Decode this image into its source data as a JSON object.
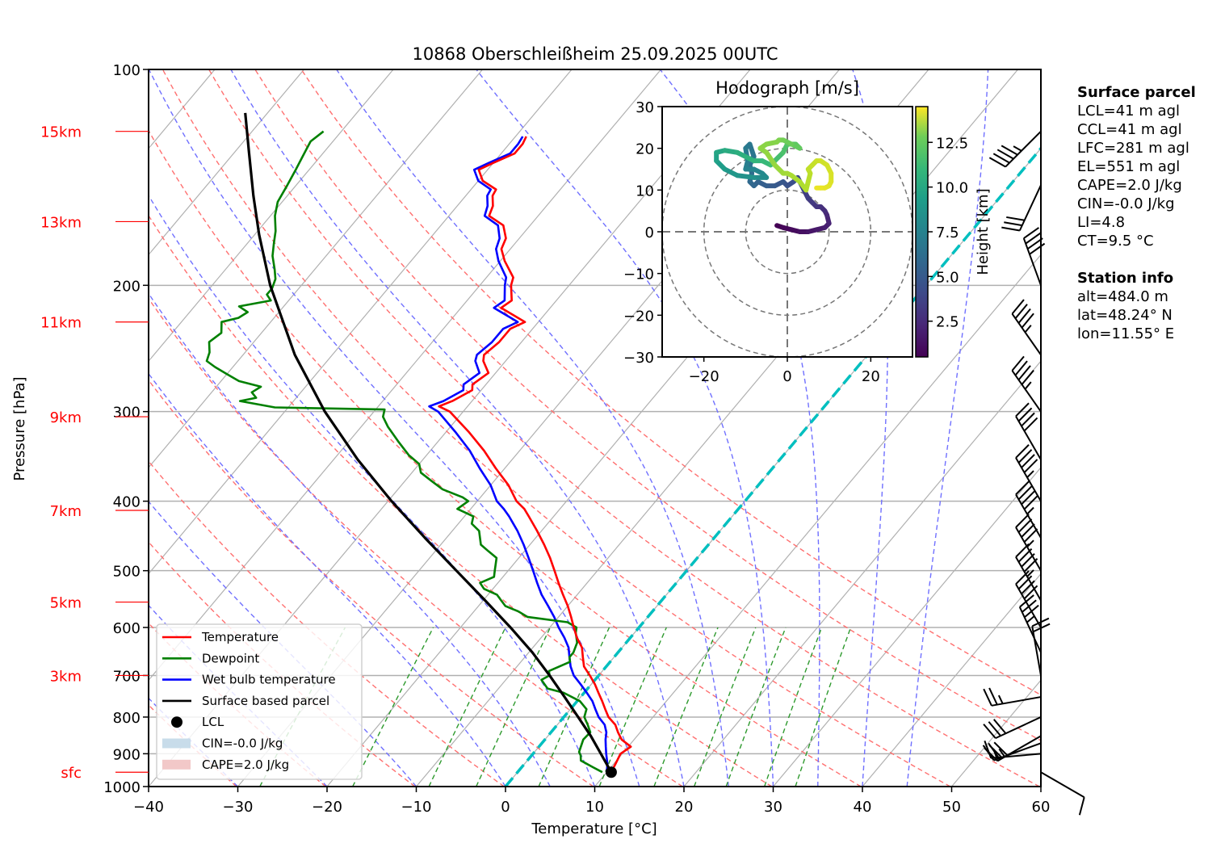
{
  "chart_data": {
    "type": "line",
    "subtype": "skew-t log-p",
    "title": "10868 Oberschleißheim 25.09.2025 00UTC",
    "xlabel": "Temperature [°C]",
    "ylabel": "Pressure [hPa]",
    "xlim": [
      -40,
      60
    ],
    "ylim": [
      1000,
      100
    ],
    "xticks": [
      -40,
      -30,
      -20,
      -10,
      0,
      10,
      20,
      30,
      40,
      50,
      60
    ],
    "yticks": [
      100,
      200,
      300,
      400,
      500,
      600,
      700,
      800,
      900,
      1000
    ],
    "grid": true,
    "height_markers": [
      {
        "label": "15km",
        "p": 122
      },
      {
        "label": "13km",
        "p": 163
      },
      {
        "label": "11km",
        "p": 225
      },
      {
        "label": "9km",
        "p": 305
      },
      {
        "label": "7km",
        "p": 412
      },
      {
        "label": "5km",
        "p": 553
      },
      {
        "label": "3km",
        "p": 700
      },
      {
        "label": "sfc",
        "p": 955
      }
    ],
    "series": [
      {
        "name": "Temperature",
        "color": "#ff0000",
        "p": [
          955,
          930,
          900,
          880,
          860,
          840,
          820,
          800,
          780,
          760,
          740,
          720,
          700,
          680,
          660,
          640,
          620,
          600,
          580,
          560,
          540,
          520,
          500,
          480,
          460,
          440,
          420,
          410,
          400,
          380,
          360,
          340,
          320,
          300,
          295,
          290,
          280,
          275,
          265,
          255,
          250,
          240,
          230,
          225,
          215,
          210,
          200,
          195,
          185,
          178,
          172,
          165,
          160,
          155,
          150,
          147,
          143,
          138,
          135,
          131,
          127,
          124
        ],
        "t": [
          10.5,
          10.2,
          9.8,
          10.3,
          8.6,
          7.5,
          6.5,
          5.0,
          3.9,
          2.8,
          1.6,
          0.4,
          -1.0,
          -2.5,
          -3.5,
          -4.5,
          -6.0,
          -7.3,
          -8.6,
          -10.0,
          -11.6,
          -13.2,
          -14.8,
          -16.5,
          -18.4,
          -20.5,
          -22.8,
          -24.0,
          -25.6,
          -28.0,
          -31.0,
          -34.0,
          -37.5,
          -41.5,
          -43.2,
          -42.2,
          -41.0,
          -41.5,
          -40.8,
          -42.5,
          -43.0,
          -42.5,
          -42.5,
          -41.5,
          -45.5,
          -45.0,
          -46.5,
          -47.0,
          -49.5,
          -51.0,
          -51.5,
          -53.0,
          -55.5,
          -56.0,
          -57.0,
          -57.2,
          -59.5,
          -61.0,
          -60.0,
          -58.5,
          -58.5,
          -58.8
        ]
      },
      {
        "name": "Dewpoint",
        "color": "#008000",
        "p": [
          955,
          940,
          920,
          905,
          895,
          880,
          860,
          840,
          820,
          800,
          780,
          760,
          740,
          730,
          710,
          700,
          690,
          670,
          660,
          650,
          630,
          610,
          600,
          590,
          580,
          570,
          560,
          550,
          540,
          530,
          520,
          510,
          500,
          480,
          470,
          460,
          440,
          430,
          420,
          410,
          400,
          395,
          385,
          375,
          365,
          355,
          345,
          330,
          315,
          305,
          298,
          296,
          290,
          287,
          282,
          277,
          272,
          266,
          260,
          255,
          248,
          240,
          233,
          225,
          222,
          218,
          214,
          210,
          206,
          202,
          196,
          190,
          182,
          175,
          168,
          160,
          153,
          145,
          138,
          132,
          126,
          122
        ],
        "t": [
          9.5,
          8.0,
          6.0,
          5.5,
          5.0,
          4.7,
          4.3,
          4.4,
          3.4,
          2.3,
          1.8,
          0.3,
          -2.3,
          -4.5,
          -6.0,
          -5.5,
          -6.0,
          -4.5,
          -5.0,
          -5.0,
          -5.5,
          -6.6,
          -7.0,
          -8.5,
          -13.5,
          -15.0,
          -17.0,
          -18.0,
          -19.0,
          -21.0,
          -22.0,
          -21.0,
          -21.5,
          -22.5,
          -24.0,
          -25.5,
          -27.0,
          -28.5,
          -29.0,
          -31.5,
          -31.0,
          -32.0,
          -35.0,
          -37.0,
          -39.0,
          -40.0,
          -42.0,
          -44.5,
          -47.0,
          -48.5,
          -49.0,
          -61.5,
          -66.0,
          -64.5,
          -65.5,
          -65.0,
          -68.0,
          -70.0,
          -72.0,
          -73.5,
          -74.0,
          -75.0,
          -74.5,
          -75.5,
          -74.0,
          -73.5,
          -75.0,
          -72.0,
          -73.0,
          -73.0,
          -73.5,
          -74.5,
          -76.0,
          -77.0,
          -78.0,
          -79.5,
          -80.5,
          -81.0,
          -81.5,
          -82.0,
          -82.5,
          -82.0
        ]
      },
      {
        "name": "Wet bulb temperature",
        "color": "#0000ff",
        "p": [
          955,
          930,
          900,
          880,
          860,
          840,
          820,
          800,
          780,
          760,
          740,
          720,
          700,
          680,
          660,
          640,
          620,
          600,
          580,
          560,
          540,
          520,
          500,
          480,
          460,
          440,
          420,
          410,
          400,
          380,
          360,
          340,
          320,
          300,
          295,
          290,
          280,
          275,
          265,
          255,
          250,
          240,
          230,
          225,
          215,
          210,
          200,
          195,
          185,
          178,
          172,
          165,
          160,
          155,
          150,
          147,
          143,
          138,
          135,
          131,
          127,
          124
        ],
        "t": [
          10.0,
          9.3,
          8.2,
          7.5,
          6.8,
          6.2,
          5.3,
          3.9,
          2.8,
          1.7,
          0.3,
          -1.2,
          -2.8,
          -4.0,
          -5.0,
          -6.0,
          -7.4,
          -9.0,
          -10.5,
          -12.2,
          -14.0,
          -15.6,
          -17.2,
          -18.9,
          -20.7,
          -22.7,
          -25.0,
          -26.3,
          -27.8,
          -30.0,
          -32.8,
          -35.6,
          -39.0,
          -42.8,
          -44.3,
          -43.2,
          -42.0,
          -42.5,
          -41.8,
          -43.4,
          -43.8,
          -43.3,
          -43.3,
          -42.3,
          -46.3,
          -45.8,
          -47.2,
          -47.8,
          -50.2,
          -51.6,
          -52.2,
          -53.6,
          -56.0,
          -56.6,
          -57.6,
          -57.8,
          -60.0,
          -61.5,
          -60.5,
          -59.0,
          -59.0,
          -59.2
        ]
      },
      {
        "name": "Surface based parcel",
        "color": "#000000",
        "p": [
          955,
          900,
          850,
          800,
          750,
          700,
          650,
          600,
          550,
          500,
          450,
          400,
          350,
          300,
          250,
          200,
          170,
          150,
          130,
          115
        ],
        "t": [
          10.5,
          7.6,
          4.8,
          1.6,
          -1.8,
          -5.5,
          -9.6,
          -14.4,
          -19.8,
          -25.8,
          -32.4,
          -39.6,
          -47.3,
          -55.5,
          -64.2,
          -73.5,
          -79.5,
          -83.8,
          -88.5,
          -92.5
        ]
      }
    ],
    "lcl": {
      "label": "LCL",
      "p": 955,
      "t": 10.5
    },
    "fills": [
      {
        "label": "CIN=-0.0 J/kg",
        "color": "#c8dcea"
      },
      {
        "label": "CAPE=2.0 J/kg",
        "color": "#f2c8c8"
      }
    ],
    "zero_isotherm": {
      "t": 0,
      "color": "#00bfbf"
    },
    "dry_adiabats_theta_K": [
      213,
      223,
      233,
      243,
      253,
      263,
      273,
      283,
      293,
      303,
      313,
      323,
      333,
      343,
      353
    ],
    "moist_adiabats_tw_C": [
      -30,
      -20,
      -10,
      0,
      5,
      10,
      15,
      20,
      25,
      30,
      35,
      40,
      45
    ],
    "mixing_ratios_gkg": [
      0.4,
      1,
      2,
      3,
      5,
      8,
      12,
      16,
      20,
      26,
      32
    ],
    "wind_barbs": [
      {
        "p": 122,
        "dir": 225,
        "spd_kt": 45
      },
      {
        "p": 145,
        "dir": 205,
        "spd_kt": 30
      },
      {
        "p": 200,
        "dir": 340,
        "spd_kt": 40
      },
      {
        "p": 250,
        "dir": 325,
        "spd_kt": 45
      },
      {
        "p": 300,
        "dir": 325,
        "spd_kt": 45
      },
      {
        "p": 350,
        "dir": 330,
        "spd_kt": 40
      },
      {
        "p": 400,
        "dir": 330,
        "spd_kt": 45
      },
      {
        "p": 450,
        "dir": 330,
        "spd_kt": 45
      },
      {
        "p": 500,
        "dir": 330,
        "spd_kt": 45
      },
      {
        "p": 550,
        "dir": 330,
        "spd_kt": 45
      },
      {
        "p": 600,
        "dir": 330,
        "spd_kt": 40
      },
      {
        "p": 650,
        "dir": 335,
        "spd_kt": 35
      },
      {
        "p": 700,
        "dir": 350,
        "spd_kt": 20
      },
      {
        "p": 750,
        "dir": 260,
        "spd_kt": 25
      },
      {
        "p": 800,
        "dir": 245,
        "spd_kt": 30
      },
      {
        "p": 850,
        "dir": 240,
        "spd_kt": 30
      },
      {
        "p": 870,
        "dir": 250,
        "spd_kt": 25
      },
      {
        "p": 900,
        "dir": 265,
        "spd_kt": 15
      },
      {
        "p": 955,
        "dir": 120,
        "spd_kt": 10
      }
    ],
    "legend": {
      "position": "lower-left",
      "items": [
        {
          "label": "Temperature",
          "kind": "line",
          "color": "#ff0000"
        },
        {
          "label": "Dewpoint",
          "kind": "line",
          "color": "#008000"
        },
        {
          "label": "Wet bulb temperature",
          "kind": "line",
          "color": "#0000ff"
        },
        {
          "label": "Surface based parcel",
          "kind": "line",
          "color": "#000000"
        },
        {
          "label": "LCL",
          "kind": "dot",
          "color": "#000000"
        },
        {
          "label": "CIN=-0.0 J/kg",
          "kind": "patch",
          "color": "#c8dcea"
        },
        {
          "label": "CAPE=2.0 J/kg",
          "kind": "patch",
          "color": "#f2c8c8"
        }
      ]
    },
    "hodograph": {
      "type": "line",
      "title": "Hodograph [m/s]",
      "xlim": [
        -30,
        30
      ],
      "ylim": [
        -30,
        30
      ],
      "xticks": [
        -20,
        0,
        20
      ],
      "yticks": [
        -30,
        -20,
        -10,
        0,
        10,
        20,
        30
      ],
      "rings": [
        10,
        20,
        30
      ],
      "colorbar": {
        "label": "Height [km]",
        "ticks": [
          2.5,
          5.0,
          7.5,
          10.0,
          12.5
        ],
        "range": [
          0.5,
          14.5
        ],
        "colormap": "viridis"
      },
      "u": [
        -2.5,
        -1,
        1,
        3,
        5,
        7,
        9,
        10,
        9.5,
        9,
        8,
        7,
        6,
        5,
        4,
        3,
        2.5,
        1.5,
        0,
        -1,
        -3,
        -5,
        -7,
        -8,
        -9,
        -8.5,
        -9,
        -8,
        -9,
        -10,
        -9.5,
        -10,
        -8,
        -6,
        -5,
        -8,
        -12,
        -15,
        -17,
        -17,
        -15,
        -12,
        -10,
        -8,
        -6,
        -4,
        -3,
        -1,
        0,
        2,
        3,
        1,
        -1,
        -2,
        -2.5,
        -5,
        -6.5,
        -5,
        -3,
        -2,
        -1,
        0,
        1,
        3,
        4.5,
        5,
        5.5,
        5,
        6,
        7,
        8,
        9.5,
        10.5,
        10.5,
        10,
        9,
        8,
        7
      ],
      "v": [
        1.5,
        1,
        0.5,
        0,
        0,
        0.5,
        1,
        2,
        4,
        5,
        6,
        6,
        7,
        8,
        10,
        12,
        13,
        12,
        11,
        12,
        11,
        11,
        12,
        11,
        12,
        14,
        16,
        18,
        21,
        20,
        17,
        15,
        15,
        14,
        13,
        13,
        13.5,
        15,
        17,
        19,
        19.5,
        19,
        18,
        17,
        17,
        16,
        17,
        19,
        21,
        21,
        20,
        21,
        22,
        22,
        21.5,
        21,
        20,
        19,
        16,
        15,
        14,
        14,
        13.5,
        12,
        10,
        12,
        14,
        15,
        16,
        17,
        17,
        16,
        14,
        12,
        11,
        10.5,
        10.5,
        10.5
      ],
      "z_km": [
        0.5,
        0.7,
        0.9,
        1.1,
        1.3,
        1.5,
        1.7,
        1.9,
        2.1,
        2.3,
        2.5,
        2.7,
        2.9,
        3.1,
        3.3,
        3.5,
        3.7,
        3.9,
        4.1,
        4.3,
        4.5,
        4.7,
        4.9,
        5.1,
        5.3,
        5.5,
        5.7,
        5.9,
        6.1,
        6.3,
        6.5,
        6.7,
        6.9,
        7.1,
        7.3,
        7.6,
        7.9,
        8.2,
        8.5,
        8.8,
        9.1,
        9.3,
        9.5,
        9.7,
        9.9,
        10.1,
        10.3,
        10.5,
        10.7,
        10.9,
        11.1,
        11.3,
        11.5,
        11.7,
        11.9,
        12.0,
        12.1,
        12.2,
        12.3,
        12.4,
        12.5,
        12.6,
        12.7,
        12.8,
        12.9,
        13.0,
        13.1,
        13.2,
        13.3,
        13.4,
        13.5,
        13.6,
        13.7,
        13.8,
        13.9,
        14.0,
        14.1,
        14.2
      ]
    }
  },
  "side_panel": {
    "surface_parcel": {
      "heading": "Surface parcel",
      "lines": [
        "LCL=41 m agl",
        "CCL=41 m agl",
        "LFC=281 m agl",
        "EL=551 m agl",
        "CAPE=2.0 J/kg",
        "CIN=-0.0 J/kg",
        "LI=4.8",
        "CT=9.5 °C"
      ]
    },
    "station_info": {
      "heading": "Station info",
      "lines": [
        "alt=484.0 m",
        "lat=48.24° N",
        "lon=11.55° E"
      ]
    }
  }
}
